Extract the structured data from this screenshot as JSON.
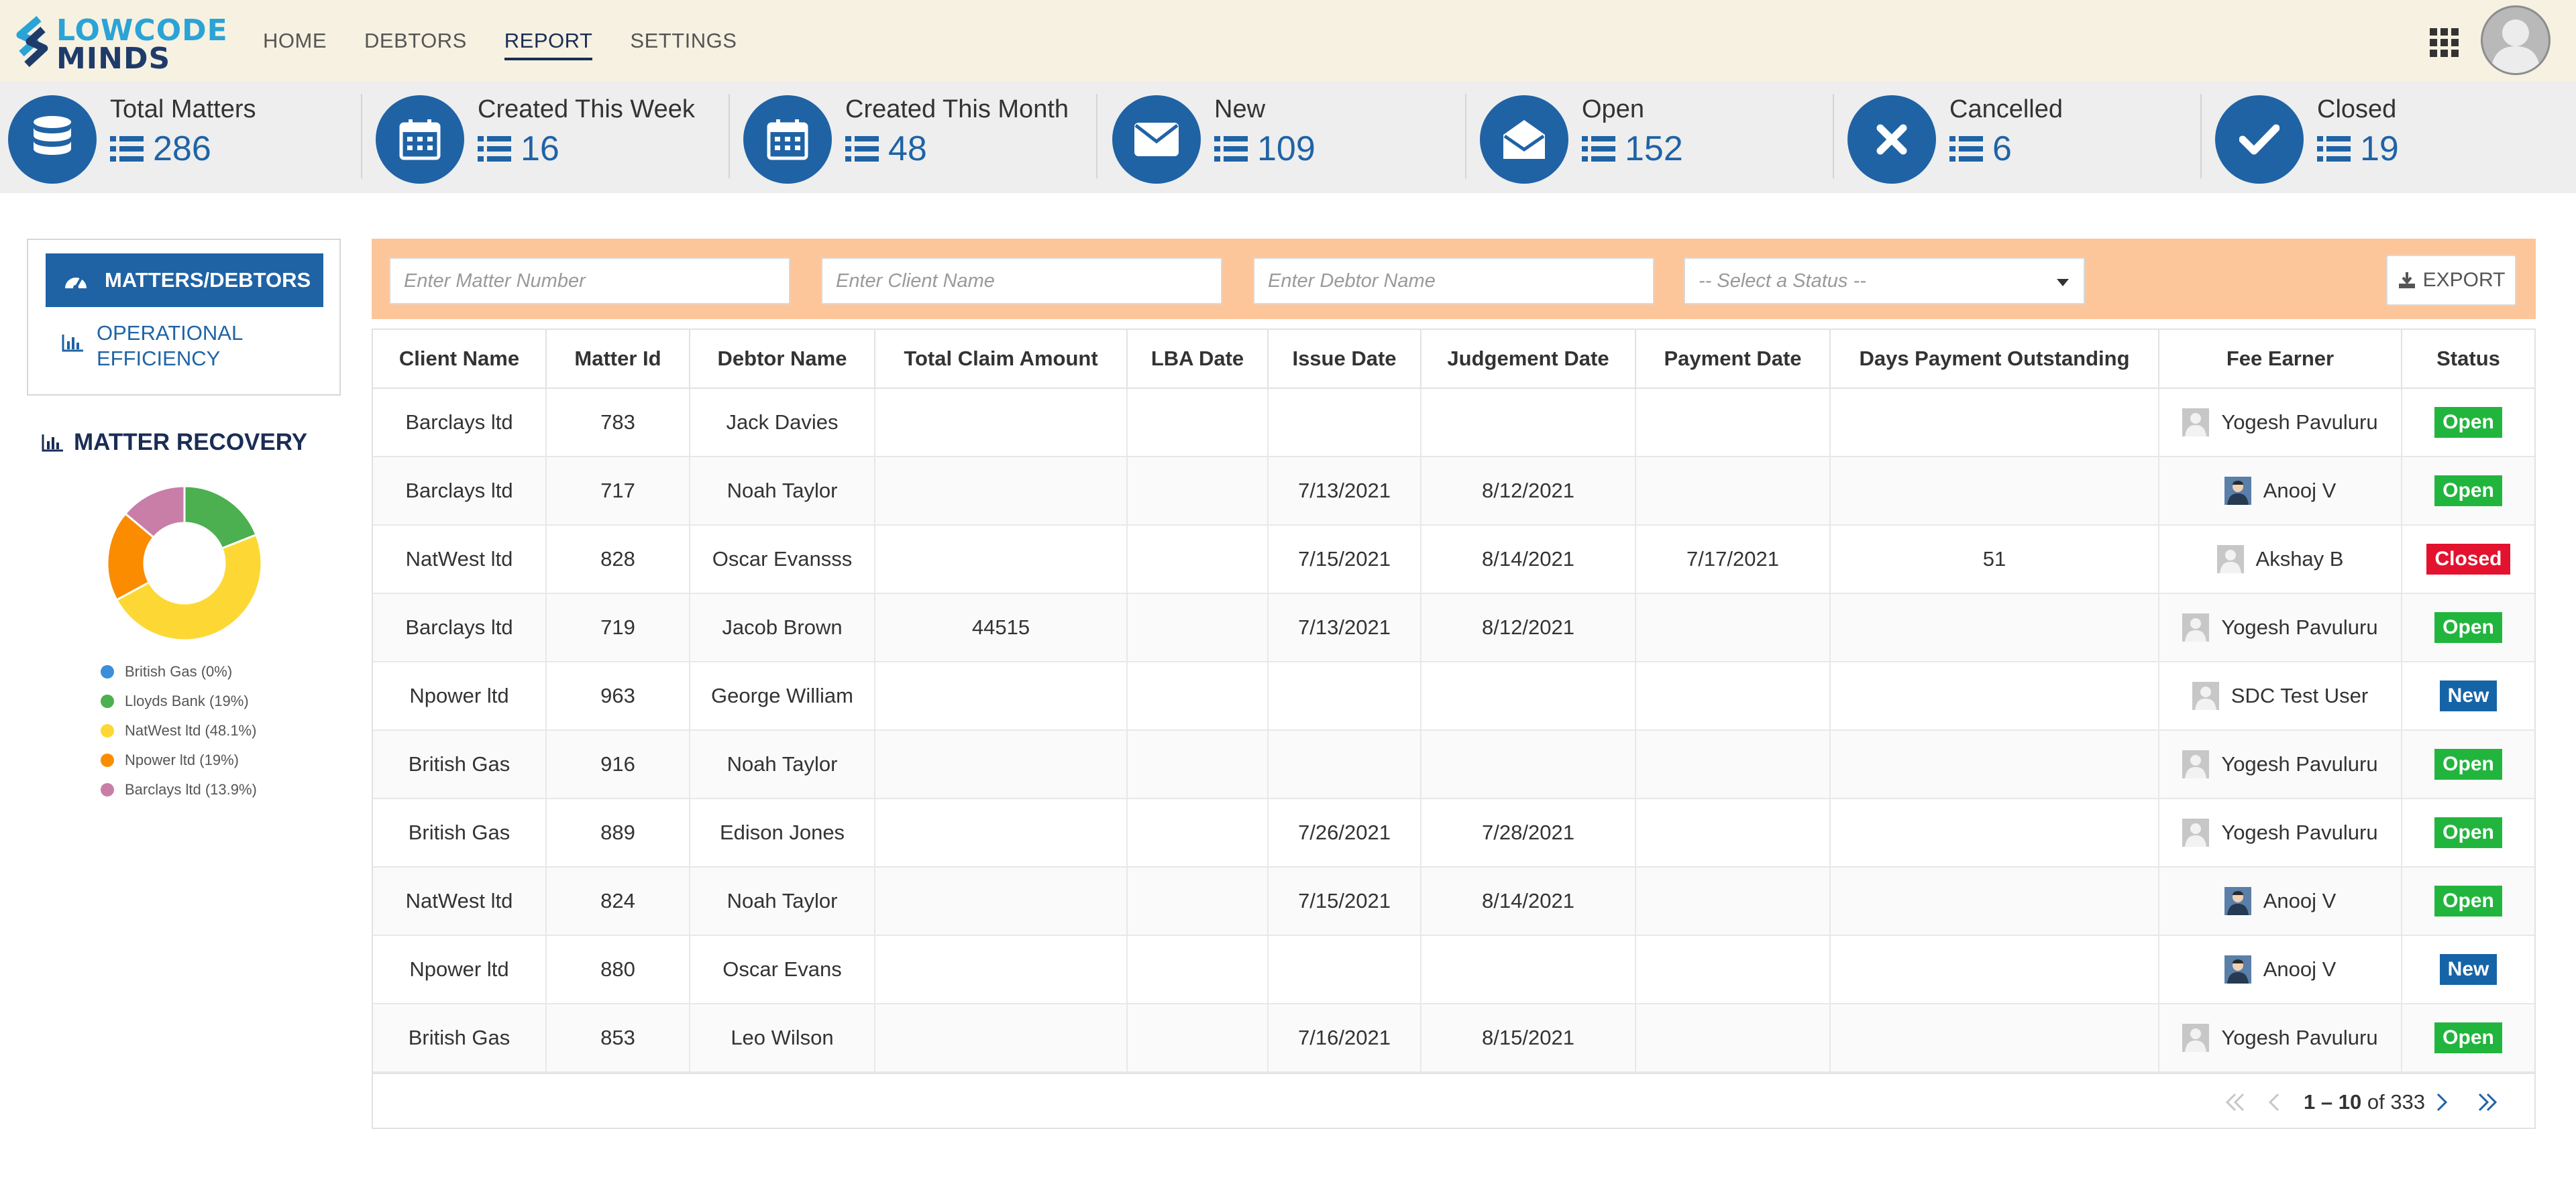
{
  "brand": {
    "line1": "LOWCODE",
    "line2": "MINDS"
  },
  "nav": [
    {
      "label": "HOME",
      "active": false
    },
    {
      "label": "DEBTORS",
      "active": false
    },
    {
      "label": "REPORT",
      "active": true
    },
    {
      "label": "SETTINGS",
      "active": false
    }
  ],
  "stats": [
    {
      "label": "Total Matters",
      "value": "286",
      "icon": "database-icon"
    },
    {
      "label": "Created This Week",
      "value": "16",
      "icon": "calendar-icon"
    },
    {
      "label": "Created This Month",
      "value": "48",
      "icon": "calendar-icon"
    },
    {
      "label": "New",
      "value": "109",
      "icon": "envelope-icon"
    },
    {
      "label": "Open",
      "value": "152",
      "icon": "envelope-open-icon"
    },
    {
      "label": "Cancelled",
      "value": "6",
      "icon": "x-icon"
    },
    {
      "label": "Closed",
      "value": "19",
      "icon": "check-icon"
    }
  ],
  "sidebar": {
    "items": [
      {
        "label": "MATTERS/DEBTORS",
        "active": true,
        "icon": "dashboard-icon"
      },
      {
        "label": "OPERATIONAL EFFICIENCY",
        "active": false,
        "icon": "bar-chart-icon"
      }
    ]
  },
  "recovery": {
    "title": "MATTER RECOVERY",
    "legend": [
      {
        "label": "British Gas (0%)",
        "color": "#3a8fd8",
        "pct": 0
      },
      {
        "label": "Lloyds Bank (19%)",
        "color": "#4caf50",
        "pct": 19
      },
      {
        "label": "NatWest ltd (48.1%)",
        "color": "#fdd835",
        "pct": 48.1
      },
      {
        "label": "Npower ltd (19%)",
        "color": "#fb8c00",
        "pct": 19
      },
      {
        "label": "Barclays ltd (13.9%)",
        "color": "#c97ea8",
        "pct": 13.9
      }
    ]
  },
  "filters": {
    "matter_placeholder": "Enter Matter Number",
    "client_placeholder": "Enter Client Name",
    "debtor_placeholder": "Enter Debtor Name",
    "status_placeholder": "-- Select a Status --",
    "export_label": "EXPORT"
  },
  "table": {
    "columns": [
      "Client Name",
      "Matter Id",
      "Debtor Name",
      "Total Claim Amount",
      "LBA Date",
      "Issue Date",
      "Judgement Date",
      "Payment Date",
      "Days Payment Outstanding",
      "Fee Earner",
      "Status"
    ],
    "rows": [
      {
        "client": "Barclays ltd",
        "matter": "783",
        "debtor": "Jack Davies",
        "claim": "",
        "lba": "",
        "issue": "",
        "judgement": "",
        "payment": "",
        "days": "",
        "fee": "Yogesh Pavuluru",
        "photo": false,
        "status": "Open"
      },
      {
        "client": "Barclays ltd",
        "matter": "717",
        "debtor": "Noah Taylor",
        "claim": "",
        "lba": "",
        "issue": "7/13/2021",
        "judgement": "8/12/2021",
        "payment": "",
        "days": "",
        "fee": "Anooj V",
        "photo": true,
        "status": "Open"
      },
      {
        "client": "NatWest ltd",
        "matter": "828",
        "debtor": "Oscar Evansss",
        "claim": "",
        "lba": "",
        "issue": "7/15/2021",
        "judgement": "8/14/2021",
        "payment": "7/17/2021",
        "days": "51",
        "fee": "Akshay B",
        "photo": false,
        "status": "Closed"
      },
      {
        "client": "Barclays ltd",
        "matter": "719",
        "debtor": "Jacob Brown",
        "claim": "44515",
        "lba": "",
        "issue": "7/13/2021",
        "judgement": "8/12/2021",
        "payment": "",
        "days": "",
        "fee": "Yogesh Pavuluru",
        "photo": false,
        "status": "Open"
      },
      {
        "client": "Npower ltd",
        "matter": "963",
        "debtor": "George William",
        "claim": "",
        "lba": "",
        "issue": "",
        "judgement": "",
        "payment": "",
        "days": "",
        "fee": "SDC Test User",
        "photo": false,
        "status": "New"
      },
      {
        "client": "British Gas",
        "matter": "916",
        "debtor": "Noah Taylor",
        "claim": "",
        "lba": "",
        "issue": "",
        "judgement": "",
        "payment": "",
        "days": "",
        "fee": "Yogesh Pavuluru",
        "photo": false,
        "status": "Open"
      },
      {
        "client": "British Gas",
        "matter": "889",
        "debtor": "Edison Jones",
        "claim": "",
        "lba": "",
        "issue": "7/26/2021",
        "judgement": "7/28/2021",
        "payment": "",
        "days": "",
        "fee": "Yogesh Pavuluru",
        "photo": false,
        "status": "Open"
      },
      {
        "client": "NatWest ltd",
        "matter": "824",
        "debtor": "Noah Taylor",
        "claim": "",
        "lba": "",
        "issue": "7/15/2021",
        "judgement": "8/14/2021",
        "payment": "",
        "days": "",
        "fee": "Anooj V",
        "photo": true,
        "status": "Open"
      },
      {
        "client": "Npower ltd",
        "matter": "880",
        "debtor": "Oscar Evans",
        "claim": "",
        "lba": "",
        "issue": "",
        "judgement": "",
        "payment": "",
        "days": "",
        "fee": "Anooj V",
        "photo": true,
        "status": "New"
      },
      {
        "client": "British Gas",
        "matter": "853",
        "debtor": "Leo Wilson",
        "claim": "",
        "lba": "",
        "issue": "7/16/2021",
        "judgement": "8/15/2021",
        "payment": "",
        "days": "",
        "fee": "Yogesh Pavuluru",
        "photo": false,
        "status": "Open"
      }
    ]
  },
  "pager": {
    "range": "1 – 10",
    "of": "of",
    "total": "333"
  }
}
